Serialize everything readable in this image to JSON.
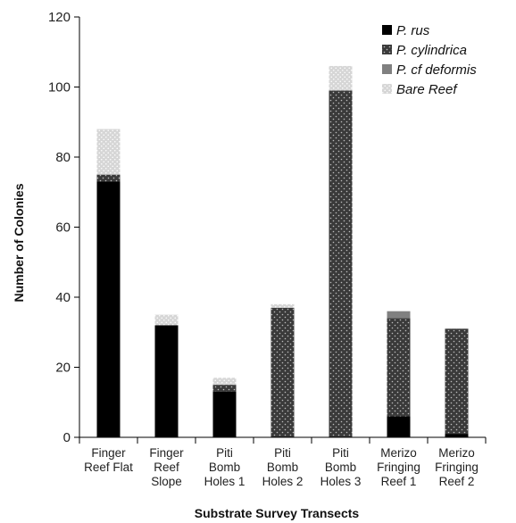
{
  "chart_data": {
    "type": "bar",
    "stacked": true,
    "title": "",
    "xlabel": "Substrate Survey Transects",
    "ylabel": "Number of Colonies",
    "ylim": [
      0,
      120
    ],
    "yticks": [
      0,
      20,
      40,
      60,
      80,
      100,
      120
    ],
    "grid": false,
    "legend_position": "top-right",
    "categories": [
      [
        "Finger",
        "Reef Flat"
      ],
      [
        "Finger",
        "Reef",
        "Slope"
      ],
      [
        "Piti",
        "Bomb",
        "Holes 1"
      ],
      [
        "Piti",
        "Bomb",
        "Holes 2"
      ],
      [
        "Piti",
        "Bomb",
        "Holes 3"
      ],
      [
        "Merizo",
        "Fringing",
        "Reef 1"
      ],
      [
        "Merizo",
        "Fringing",
        "Reef 2"
      ]
    ],
    "series": [
      {
        "name": "P. rus",
        "color": "#000000",
        "pattern": "solid",
        "values": [
          73,
          32,
          13,
          0,
          0,
          6,
          1
        ]
      },
      {
        "name": "P. cylindrica",
        "color": "#3a3a3a",
        "pattern": "dots",
        "values": [
          2,
          0,
          2,
          37,
          99,
          28,
          30
        ]
      },
      {
        "name": "P. cf deformis",
        "color": "#808080",
        "pattern": "solid",
        "values": [
          0,
          0,
          0,
          0,
          0,
          2,
          0
        ]
      },
      {
        "name": "Bare Reef",
        "color": "#c8c8c8",
        "pattern": "light-dots",
        "values": [
          13,
          3,
          2,
          1,
          7,
          0,
          0
        ]
      }
    ]
  }
}
